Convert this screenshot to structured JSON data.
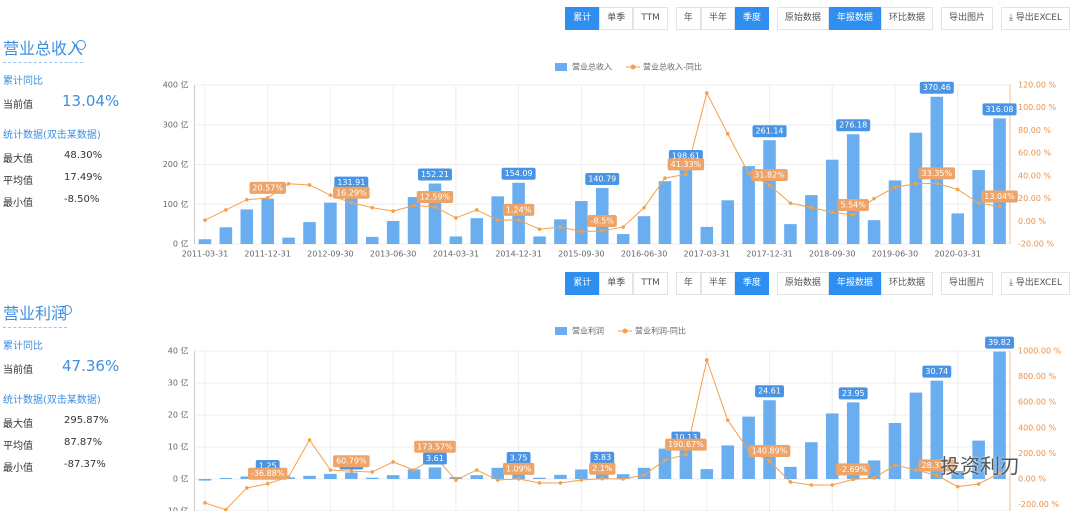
{
  "panels": [
    {
      "title": "营业总收入",
      "stats": {
        "cumulative_label": "累计同比",
        "current_label": "当前值",
        "current_value": "13.04%",
        "stats_label": "统计数据(双击某数据)",
        "rows": [
          {
            "label": "最大值",
            "value": "48.30%"
          },
          {
            "label": "平均值",
            "value": "17.49%"
          },
          {
            "label": "最小值",
            "value": "-8.50%"
          }
        ]
      },
      "toolbar": [
        [
          {
            "label": "累计",
            "active": true
          },
          {
            "label": "单季",
            "active": false
          },
          {
            "label": "TTM",
            "active": false
          }
        ],
        [
          {
            "label": "年",
            "active": false
          },
          {
            "label": "半年",
            "active": false
          },
          {
            "label": "季度",
            "active": true
          }
        ],
        [
          {
            "label": "原始数据",
            "active": false
          },
          {
            "label": "年报数据",
            "active": true
          },
          {
            "label": "环比数据",
            "active": false
          }
        ],
        [
          {
            "label": "导出图片",
            "active": false
          }
        ],
        [
          {
            "label": "⤓ 导出EXCEL",
            "active": false
          }
        ]
      ]
    },
    {
      "title": "营业利润",
      "stats": {
        "cumulative_label": "累计同比",
        "current_label": "当前值",
        "current_value": "47.36%",
        "stats_label": "统计数据(双击某数据)",
        "rows": [
          {
            "label": "最大值",
            "value": "295.87%"
          },
          {
            "label": "平均值",
            "value": "87.87%"
          },
          {
            "label": "最小值",
            "value": "-87.37%"
          }
        ]
      },
      "toolbar": [
        [
          {
            "label": "累计",
            "active": true
          },
          {
            "label": "单季",
            "active": false
          },
          {
            "label": "TTM",
            "active": false
          }
        ],
        [
          {
            "label": "年",
            "active": false
          },
          {
            "label": "半年",
            "active": false
          },
          {
            "label": "季度",
            "active": true
          }
        ],
        [
          {
            "label": "原始数据",
            "active": false
          },
          {
            "label": "年报数据",
            "active": true
          },
          {
            "label": "环比数据",
            "active": false
          }
        ],
        [
          {
            "label": "导出图片",
            "active": false
          }
        ],
        [
          {
            "label": "⤓ 导出EXCEL",
            "active": false
          }
        ]
      ]
    }
  ],
  "watermark": "投资利刃",
  "chart_data": [
    {
      "type": "combo",
      "grid": true,
      "categories": [
        "2011-03-31",
        null,
        null,
        "2011-12-31",
        null,
        null,
        "2012-09-30",
        null,
        null,
        "2013-06-30",
        null,
        null,
        "2014-03-31",
        null,
        null,
        "2014-12-31",
        null,
        null,
        "2015-09-30",
        null,
        null,
        "2016-06-30",
        null,
        null,
        "2017-03-31",
        null,
        null,
        "2017-12-31",
        null,
        null,
        "2018-09-30",
        null,
        null,
        "2019-06-30",
        null,
        null,
        "2020-03-31",
        null,
        null
      ],
      "ylim": [
        0,
        400
      ],
      "yticks": [
        {
          "value": 0,
          "label": "0 亿"
        },
        {
          "value": 100,
          "label": "100 亿"
        },
        {
          "value": 200,
          "label": "200 亿"
        },
        {
          "value": 300,
          "label": "300 亿"
        },
        {
          "value": 400,
          "label": "400 亿"
        }
      ],
      "y2lim": [
        -20,
        120
      ],
      "y2ticks": [
        {
          "value": -20,
          "label": "-20.00 %"
        },
        {
          "value": 0,
          "label": "0.00 %"
        },
        {
          "value": 20,
          "label": "20.00 %"
        },
        {
          "value": 40,
          "label": "40.00 %"
        },
        {
          "value": 60,
          "label": "60.00 %"
        },
        {
          "value": 80,
          "label": "80.00 %"
        },
        {
          "value": 100,
          "label": "100.00 %"
        },
        {
          "value": 120,
          "label": "120.00 %"
        }
      ],
      "series": [
        {
          "name": "营业总收入",
          "type": "bar",
          "color": "#6aaef0",
          "values": [
            12,
            42,
            87,
            114,
            16,
            55,
            104,
            131.91,
            18,
            58,
            118,
            152.21,
            19,
            65,
            120,
            154.09,
            19,
            62,
            108,
            140.79,
            25,
            70,
            158,
            198.61,
            43,
            110,
            196,
            261.14,
            50,
            123,
            212,
            276.18,
            60,
            160,
            280,
            370.46,
            77,
            186,
            316.08
          ],
          "value_labels": [
            null,
            null,
            null,
            null,
            null,
            null,
            null,
            "131.91",
            null,
            null,
            null,
            "152.21",
            null,
            null,
            null,
            "154.09",
            null,
            null,
            null,
            "140.79",
            null,
            null,
            null,
            "198.61",
            null,
            null,
            null,
            "261.14",
            null,
            null,
            null,
            "276.18",
            null,
            null,
            null,
            "370.46",
            null,
            null,
            "316.08"
          ]
        },
        {
          "name": "营业总收入-同比",
          "type": "line",
          "axis": "y2",
          "color": "#f5a04a",
          "values": [
            1,
            10,
            19,
            20.57,
            33,
            32,
            23,
            16.29,
            12,
            9,
            14,
            12.59,
            3,
            10,
            1,
            1.24,
            -7,
            -5,
            -9,
            -8.5,
            -5,
            12,
            38,
            41.33,
            113,
            77,
            42,
            31.82,
            16,
            12,
            8,
            5.54,
            20,
            30,
            33,
            33.35,
            28,
            16,
            13.04
          ],
          "value_labels": [
            null,
            null,
            null,
            "20.57%",
            null,
            null,
            null,
            "16.29%",
            null,
            null,
            null,
            "12.59%",
            null,
            null,
            null,
            "1.24%",
            null,
            null,
            null,
            "-8.5%",
            null,
            null,
            null,
            "41.33%",
            null,
            null,
            null,
            "31.82%",
            null,
            null,
            null,
            "5.54%",
            null,
            null,
            null,
            "33.35%",
            null,
            null,
            "13.04%"
          ]
        }
      ]
    },
    {
      "type": "combo",
      "grid": true,
      "ylim": [
        -10,
        40
      ],
      "yticks": [
        {
          "value": -10,
          "label": "-10 亿"
        },
        {
          "value": 0,
          "label": "0 亿"
        },
        {
          "value": 10,
          "label": "10 亿"
        },
        {
          "value": 20,
          "label": "20 亿"
        },
        {
          "value": 30,
          "label": "30 亿"
        },
        {
          "value": 40,
          "label": "40 亿"
        }
      ],
      "y2lim": [
        -250,
        1000
      ],
      "y2ticks": [
        {
          "value": -200,
          "label": "-200.00 %"
        },
        {
          "value": 0,
          "label": "0.00 %"
        },
        {
          "value": 200,
          "label": "200.00 %"
        },
        {
          "value": 400,
          "label": "400.00 %"
        },
        {
          "value": 600,
          "label": "600.00 %"
        },
        {
          "value": 800,
          "label": "800.00 %"
        },
        {
          "value": 1000,
          "label": "1000.00 %"
        }
      ],
      "series": [
        {
          "name": "营业利润",
          "type": "bar",
          "color": "#6aaef0",
          "values": [
            -0.5,
            0.3,
            0.8,
            1.25,
            0.5,
            1,
            1.6,
            2.02,
            0.4,
            1.2,
            3,
            3.61,
            0.6,
            1.2,
            3.5,
            3.75,
            0.4,
            1.3,
            3,
            3.83,
            1.5,
            3.5,
            9.5,
            10.13,
            3.1,
            10.5,
            19.5,
            24.61,
            3.8,
            11.5,
            20.5,
            23.95,
            5.8,
            17.5,
            27,
            30.74,
            2.5,
            12,
            39.82
          ],
          "value_labels": [
            null,
            null,
            null,
            "1.25",
            null,
            null,
            null,
            "2.02",
            null,
            null,
            null,
            "3.61",
            null,
            null,
            null,
            "3.75",
            null,
            null,
            null,
            "3.83",
            null,
            null,
            null,
            "10.13",
            null,
            null,
            null,
            "24.61",
            null,
            null,
            null,
            "23.95",
            null,
            null,
            null,
            "30.74",
            null,
            null,
            "39.82"
          ]
        },
        {
          "name": "营业利润-同比",
          "type": "line",
          "axis": "y2",
          "color": "#f5a04a",
          "values": [
            -187,
            -240,
            -70,
            -36.88,
            16,
            305,
            70,
            60.79,
            55,
            133,
            70,
            173.57,
            -8,
            70,
            -8,
            1.09,
            -31,
            -31,
            -8,
            2.1,
            0,
            31,
            148,
            190.67,
            930,
            460,
            226,
            140.89,
            -23,
            -47,
            -47,
            -2.69,
            8,
            109,
            70,
            28.31,
            -60,
            -39,
            47.36
          ],
          "value_labels": [
            null,
            null,
            null,
            "-36.88%",
            null,
            null,
            null,
            "60.79%",
            null,
            null,
            null,
            "173.57%",
            null,
            null,
            null,
            "1.09%",
            null,
            null,
            null,
            "2.1%",
            null,
            null,
            null,
            "190.67%",
            null,
            null,
            null,
            "140.89%",
            null,
            null,
            null,
            "-2.69%",
            null,
            null,
            null,
            "28.31%",
            null,
            null,
            null
          ]
        }
      ]
    }
  ]
}
